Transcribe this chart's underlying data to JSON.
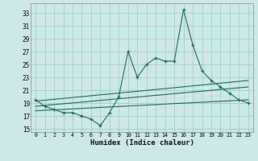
{
  "xlabel": "Humidex (Indice chaleur)",
  "bg_color": "#cce8e8",
  "grid_color": "#aad0d0",
  "line_color": "#1a6e60",
  "xlim": [
    -0.5,
    23.5
  ],
  "ylim": [
    14.5,
    34.5
  ],
  "yticks": [
    15,
    17,
    19,
    21,
    23,
    25,
    27,
    29,
    31,
    33
  ],
  "xtick_labels": [
    "0",
    "1",
    "2",
    "3",
    "4",
    "5",
    "6",
    "7",
    "8",
    "9",
    "10",
    "11",
    "12",
    "13",
    "14",
    "15",
    "16",
    "17",
    "18",
    "19",
    "20",
    "21",
    "22",
    "23"
  ],
  "main_x": [
    0,
    1,
    2,
    3,
    4,
    5,
    6,
    7,
    8,
    9,
    10,
    11,
    12,
    13,
    14,
    15,
    16,
    17,
    18,
    19,
    20,
    21,
    22,
    23
  ],
  "main_y": [
    19.5,
    18.5,
    18.0,
    17.5,
    17.5,
    17.0,
    16.5,
    15.5,
    17.5,
    20.0,
    27.0,
    23.0,
    25.0,
    26.0,
    25.5,
    25.5,
    33.5,
    28.0,
    24.0,
    22.5,
    21.5,
    20.5,
    19.5,
    19.0
  ],
  "trend_lines": [
    {
      "x": [
        0,
        23
      ],
      "y": [
        19.3,
        22.5
      ]
    },
    {
      "x": [
        0,
        23
      ],
      "y": [
        18.5,
        21.5
      ]
    },
    {
      "x": [
        0,
        23
      ],
      "y": [
        17.8,
        19.5
      ]
    }
  ]
}
